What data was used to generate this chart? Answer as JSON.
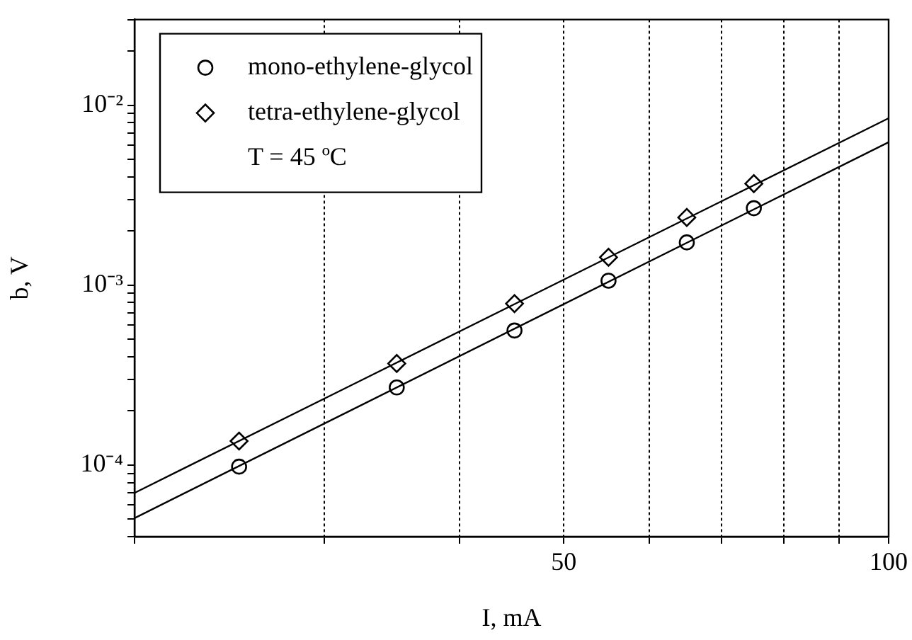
{
  "chart_data": {
    "type": "scatter",
    "xlabel": "I, mA",
    "ylabel": "b, V",
    "log": "xy",
    "xlim": [
      20,
      100
    ],
    "ylim": [
      4e-05,
      0.03
    ],
    "xticks": [
      {
        "value": 20,
        "label": null
      },
      {
        "value": 30,
        "label": null
      },
      {
        "value": 40,
        "label": null
      },
      50,
      {
        "value": 60,
        "label": null
      },
      {
        "value": 70,
        "label": null
      },
      {
        "value": 80,
        "label": null
      },
      {
        "value": 90,
        "label": null
      },
      100
    ],
    "yticks": [
      {
        "value": 4e-05,
        "label": null
      },
      {
        "value": 5e-05,
        "label": null
      },
      {
        "value": 6e-05,
        "label": null
      },
      {
        "value": 7e-05,
        "label": null
      },
      {
        "value": 8e-05,
        "label": null
      },
      {
        "value": 9e-05,
        "label": null
      },
      {
        "value": 0.0001,
        "label": "10⁻⁴"
      },
      {
        "value": 0.0002,
        "label": null
      },
      {
        "value": 0.0003,
        "label": null
      },
      {
        "value": 0.0004,
        "label": null
      },
      {
        "value": 0.0005,
        "label": null
      },
      {
        "value": 0.0006,
        "label": null
      },
      {
        "value": 0.0007,
        "label": null
      },
      {
        "value": 0.0008,
        "label": null
      },
      {
        "value": 0.0009,
        "label": null
      },
      {
        "value": 0.001,
        "label": "10⁻³"
      },
      {
        "value": 0.002,
        "label": null
      },
      {
        "value": 0.003,
        "label": null
      },
      {
        "value": 0.004,
        "label": null
      },
      {
        "value": 0.005,
        "label": null
      },
      {
        "value": 0.006,
        "label": null
      },
      {
        "value": 0.007,
        "label": null
      },
      {
        "value": 0.008,
        "label": null
      },
      {
        "value": 0.009,
        "label": null
      },
      {
        "value": 0.01,
        "label": "10⁻²"
      },
      {
        "value": 0.02,
        "label": null
      },
      {
        "value": 0.03,
        "label": null
      }
    ],
    "grid": "x",
    "legend": "top left",
    "annotations": [
      "T = 45 ºC"
    ],
    "series": [
      {
        "name": "mono-ethylene-glycol",
        "color": "#000000",
        "marker": "circle",
        "x": [
          25,
          35,
          45,
          55,
          65,
          75
        ],
        "values": [
          9.8e-05,
          0.00027,
          0.00056,
          0.00106,
          0.00173,
          0.00268
        ]
      },
      {
        "name": "tetra-ethylene-glycol",
        "color": "#000000",
        "marker": "diamond",
        "x": [
          25,
          35,
          45,
          55,
          65,
          75
        ],
        "values": [
          0.000136,
          0.000367,
          0.00079,
          0.00143,
          0.00238,
          0.00367
        ]
      },
      {
        "type": "line",
        "color": "#000000",
        "marker": "none",
        "x": [
          20,
          100
        ],
        "values": [
          5.07e-05,
          0.00624
        ]
      },
      {
        "type": "line",
        "color": "#000000",
        "marker": "none",
        "x": [
          20,
          100
        ],
        "values": [
          7e-05,
          0.00848
        ]
      }
    ]
  }
}
